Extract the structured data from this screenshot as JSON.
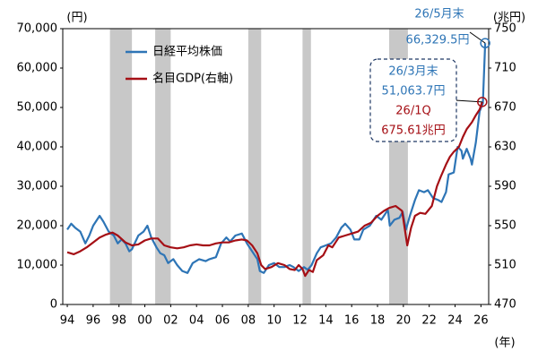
{
  "chart_data": {
    "type": "line",
    "xlim": [
      1993.65,
      2026.6
    ],
    "ylim": [
      0,
      70000
    ],
    "y2lim": [
      470,
      750
    ],
    "xticks": [
      {
        "value": 1994,
        "label": "94"
      },
      {
        "value": 1996,
        "label": "96"
      },
      {
        "value": 1998,
        "label": "98"
      },
      {
        "value": 2000,
        "label": "00"
      },
      {
        "value": 2002,
        "label": "02"
      },
      {
        "value": 2004,
        "label": "04"
      },
      {
        "value": 2006,
        "label": "06"
      },
      {
        "value": 2008,
        "label": "08"
      },
      {
        "value": 2010,
        "label": "10"
      },
      {
        "value": 2012,
        "label": "12"
      },
      {
        "value": 2014,
        "label": "14"
      },
      {
        "value": 2016,
        "label": "16"
      },
      {
        "value": 2018,
        "label": "18"
      },
      {
        "value": 2020,
        "label": "20"
      },
      {
        "value": 2022,
        "label": "22"
      },
      {
        "value": 2024,
        "label": "24"
      },
      {
        "value": 2026,
        "label": "26"
      }
    ],
    "yticks": [
      0,
      {
        "value": 10000,
        "label": "10,000"
      },
      {
        "value": 20000,
        "label": "20,000"
      },
      {
        "value": 30000,
        "label": "30,000"
      },
      {
        "value": 40000,
        "label": "40,000"
      },
      {
        "value": 50000,
        "label": "50,000"
      },
      {
        "value": 60000,
        "label": "60,000"
      },
      {
        "value": 70000,
        "label": "70,000"
      }
    ],
    "y2ticks": [
      470,
      510,
      550,
      590,
      630,
      670,
      710,
      750
    ],
    "y_unit": "(円)",
    "y2_unit": "(兆円)",
    "x_unit": "(年)",
    "shaded_periods": [
      [
        1997.3,
        1999.0
      ],
      [
        2000.8,
        2002.0
      ],
      [
        2008.0,
        2009.0
      ],
      [
        2012.2,
        2012.85
      ],
      [
        2018.9,
        2020.35
      ]
    ],
    "series": [
      {
        "name": "日経平均株価",
        "color": "#2e75b6",
        "x": [
          1994.0,
          1994.3,
          1994.6,
          1995.0,
          1995.4,
          1995.7,
          1996.0,
          1996.5,
          1996.8,
          1997.2,
          1997.6,
          1997.9,
          1998.2,
          1998.5,
          1998.8,
          1999.0,
          1999.5,
          1999.9,
          2000.2,
          2000.5,
          2000.9,
          2001.2,
          2001.5,
          2001.8,
          2002.2,
          2002.5,
          2002.9,
          2003.3,
          2003.7,
          2004.2,
          2004.7,
          2005.0,
          2005.5,
          2005.9,
          2006.3,
          2006.6,
          2007.0,
          2007.5,
          2007.9,
          2008.3,
          2008.7,
          2008.9,
          2009.2,
          2009.6,
          2010.0,
          2010.4,
          2010.8,
          2011.2,
          2011.5,
          2011.9,
          2012.3,
          2012.6,
          2012.9,
          2013.3,
          2013.6,
          2014.0,
          2014.4,
          2014.8,
          2015.2,
          2015.5,
          2015.9,
          2016.2,
          2016.6,
          2016.9,
          2017.4,
          2017.9,
          2018.3,
          2018.8,
          2018.95,
          2019.3,
          2019.7,
          2019.95,
          2020.2,
          2020.5,
          2020.9,
          2021.2,
          2021.6,
          2021.9,
          2022.3,
          2022.7,
          2022.95,
          2023.3,
          2023.5,
          2023.9,
          2024.2,
          2024.5,
          2024.6,
          2024.9,
          2025.2,
          2025.3,
          2025.6,
          2025.9,
          2026.15,
          2026.33
        ],
        "values": [
          19000,
          20500,
          19500,
          18500,
          15500,
          17500,
          20000,
          22500,
          21000,
          18500,
          17500,
          15500,
          16500,
          15500,
          13500,
          14000,
          17500,
          18500,
          20000,
          17000,
          14500,
          13000,
          12500,
          10500,
          11500,
          10000,
          8500,
          8000,
          10500,
          11500,
          11000,
          11500,
          12000,
          15500,
          17000,
          16000,
          17500,
          18000,
          15500,
          13500,
          11500,
          8500,
          8000,
          10000,
          10500,
          9500,
          9500,
          10000,
          9500,
          8500,
          9500,
          8800,
          10000,
          13000,
          14500,
          15000,
          15500,
          17000,
          19500,
          20500,
          19000,
          16500,
          16500,
          19000,
          20000,
          22500,
          21500,
          24000,
          20000,
          21500,
          22000,
          23500,
          19000,
          22500,
          26500,
          29000,
          28500,
          29000,
          27000,
          26500,
          26000,
          28500,
          33000,
          33500,
          40000,
          39000,
          37000,
          39500,
          37000,
          35500,
          41000,
          49000,
          51063.7,
          66329.5
        ],
        "value_labels": [
          null,
          null,
          null,
          null,
          null,
          null,
          null,
          null,
          null,
          null,
          null,
          null,
          null,
          null,
          null,
          null,
          null,
          null,
          null,
          null,
          null,
          null,
          null,
          null,
          null,
          null,
          null,
          null,
          null,
          null,
          null,
          null,
          null,
          null,
          null,
          null,
          null,
          null,
          null,
          null,
          null,
          null,
          null,
          null,
          null,
          null,
          null,
          null,
          null,
          null,
          null,
          null,
          null,
          null,
          null,
          null,
          null,
          null,
          null,
          null,
          null,
          null,
          null,
          null,
          null,
          null,
          null,
          null,
          null,
          null,
          null,
          null,
          null,
          null,
          null,
          null,
          null,
          null,
          null,
          null,
          null,
          null,
          null,
          null,
          null,
          null,
          null,
          null,
          null,
          null,
          null,
          null,
          "51,063.7円",
          "66,329.5円"
        ],
        "date_labels": [
          "26/3月末",
          "26/5月末"
        ]
      },
      {
        "name": "名目GDP(右軸)",
        "color": "#a50f15",
        "axis": "y2",
        "x": [
          1994.0,
          1994.5,
          1995.0,
          1995.5,
          1996.0,
          1996.5,
          1997.0,
          1997.5,
          1997.9,
          1998.5,
          1999.0,
          1999.5,
          2000.0,
          2000.5,
          2001.0,
          2001.5,
          2002.0,
          2002.5,
          2003.0,
          2003.5,
          2004.0,
          2004.5,
          2005.0,
          2005.5,
          2006.0,
          2006.5,
          2007.0,
          2007.5,
          2007.9,
          2008.3,
          2008.7,
          2009.0,
          2009.3,
          2009.8,
          2010.3,
          2010.8,
          2011.2,
          2011.6,
          2011.9,
          2012.2,
          2012.4,
          2012.7,
          2013.0,
          2013.3,
          2013.8,
          2014.2,
          2014.5,
          2015.0,
          2015.5,
          2016.0,
          2016.5,
          2017.0,
          2017.5,
          2018.0,
          2018.5,
          2018.9,
          2019.4,
          2019.9,
          2020.3,
          2020.6,
          2020.9,
          2021.3,
          2021.7,
          2022.2,
          2022.6,
          2022.9,
          2023.3,
          2023.6,
          2023.9,
          2024.3,
          2024.6,
          2024.9,
          2025.3,
          2025.6,
          2025.9,
          2026.1
        ],
        "values": [
          523,
          521,
          524,
          528,
          533,
          538,
          541,
          543,
          540,
          533,
          530,
          531,
          535,
          537,
          537,
          530,
          528,
          527,
          528,
          530,
          531,
          530,
          530,
          532,
          533,
          533,
          535,
          536,
          535,
          530,
          522,
          510,
          506,
          508,
          512,
          510,
          506,
          505,
          510,
          506,
          499,
          505,
          503,
          515,
          520,
          530,
          528,
          538,
          540,
          542,
          544,
          550,
          553,
          560,
          565,
          568,
          570,
          565,
          530,
          548,
          560,
          563,
          562,
          570,
          590,
          600,
          612,
          620,
          625,
          630,
          640,
          648,
          655,
          662,
          668,
          675.61
        ],
        "value_labels": [
          null,
          null,
          null,
          null,
          null,
          null,
          null,
          null,
          null,
          null,
          null,
          null,
          null,
          null,
          null,
          null,
          null,
          null,
          null,
          null,
          null,
          null,
          null,
          null,
          null,
          null,
          null,
          null,
          null,
          null,
          null,
          null,
          null,
          null,
          null,
          null,
          null,
          null,
          null,
          null,
          null,
          null,
          null,
          null,
          null,
          null,
          null,
          null,
          null,
          null,
          null,
          null,
          null,
          null,
          null,
          null,
          null,
          null,
          null,
          null,
          null,
          null,
          null,
          null,
          null,
          null,
          null,
          null,
          null,
          null,
          null,
          null,
          null,
          null,
          null,
          "675.61兆円"
        ],
        "date_label": "26/1Q"
      }
    ]
  }
}
